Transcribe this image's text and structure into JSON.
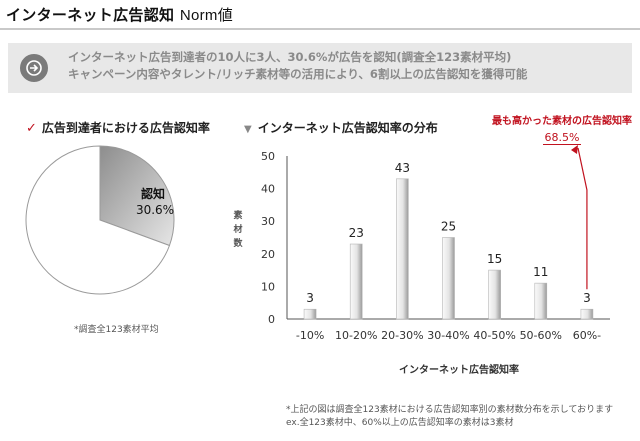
{
  "title": {
    "jp": "インターネット広告認知",
    "en": "Norm値"
  },
  "banner": {
    "line1": "インターネット広告到達者の10人に3人、30.6%が広告を認知(調査全123素材平均)",
    "line2": "キャンペーン内容やタレント/リッチ素材等の活用により、6割以上の広告認知を獲得可能"
  },
  "left_section": {
    "heading": "広告到達者における広告認知率",
    "slice_label": "認知",
    "slice_value": "30.6%",
    "note": "*調査全123素材平均"
  },
  "right_section": {
    "heading": "インターネット広告認知率の分布",
    "callout_title": "最も高かった素材の広告認知率",
    "callout_value": "68.5%"
  },
  "colors": {
    "accent": "#c1121f",
    "bar_light": "#f4f4f4",
    "bar_dark": "#9a9a9a",
    "pie_dark": "#a8a8a8"
  },
  "chart_data": [
    {
      "type": "pie",
      "slices": [
        {
          "label": "認知",
          "value": 30.6
        },
        {
          "label": "",
          "value": 69.4
        }
      ]
    },
    {
      "type": "bar",
      "categories": [
        "-10%",
        "10-20%",
        "20-30%",
        "30-40%",
        "40-50%",
        "50-60%",
        "60%-"
      ],
      "values": [
        3,
        23,
        43,
        25,
        15,
        11,
        3
      ],
      "ylabel": "素材数",
      "xlabel": "インターネット広告認知率",
      "ylim": [
        0,
        50
      ],
      "yticks": [
        0,
        10,
        20,
        30,
        40,
        50
      ],
      "grid": false
    }
  ],
  "footnote": {
    "line1": "*上記の図は調査全123素材における広告認知率別の素材数分布を示しております",
    "line2": "ex.全123素材中、60%以上の広告認知率の素材は3素材"
  }
}
